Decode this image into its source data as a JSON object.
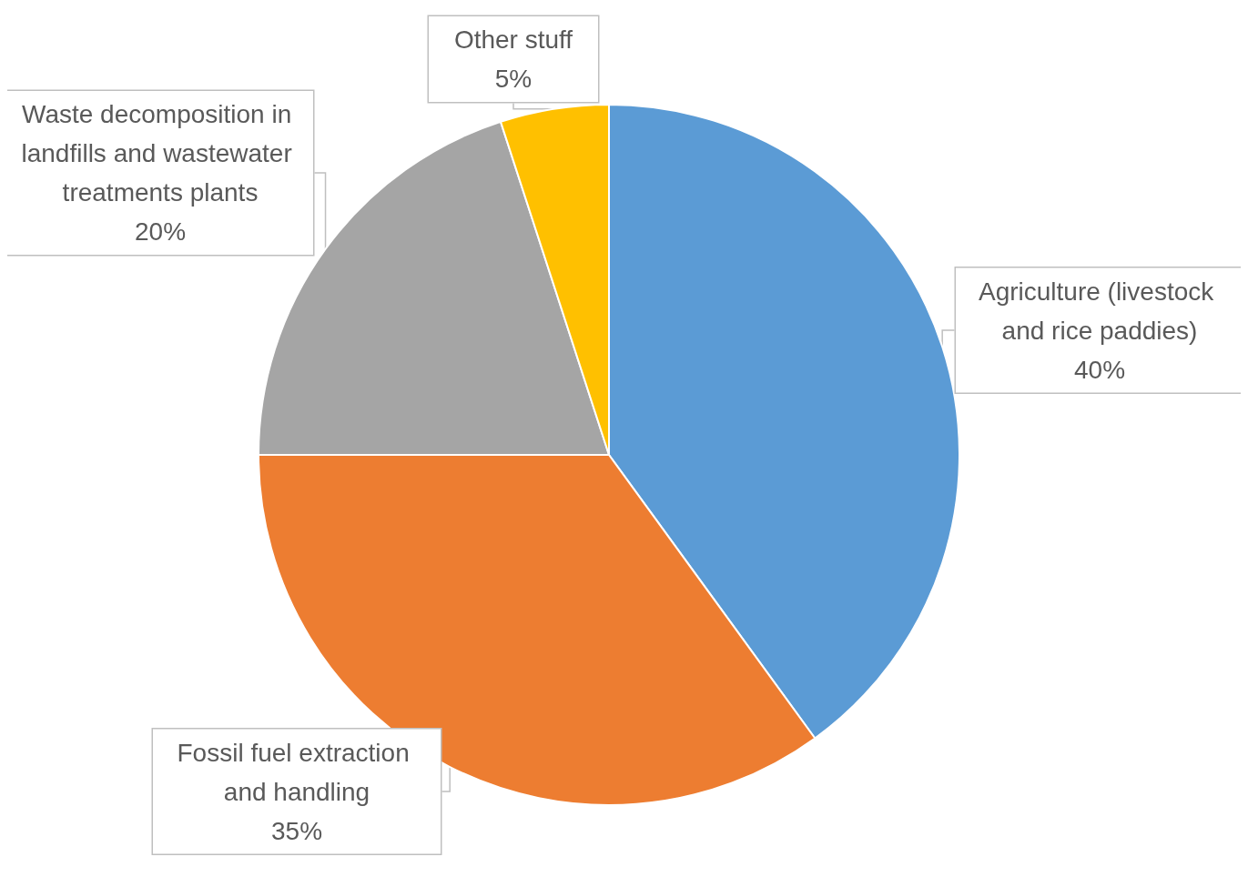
{
  "chart_data": {
    "type": "pie",
    "categories": [
      "Agriculture (livestock and rice paddies)",
      "Fossil fuel extraction and handling",
      "Waste decomposition in landfills and wastewater treatments plants",
      "Other stuff"
    ],
    "values": [
      40,
      35,
      20,
      5
    ],
    "value_labels": [
      "40%",
      "35%",
      "20%",
      "5%"
    ],
    "colors": [
      "#5b9bd5",
      "#ed7d31",
      "#a5a5a5",
      "#ffc000"
    ],
    "legend": false
  }
}
